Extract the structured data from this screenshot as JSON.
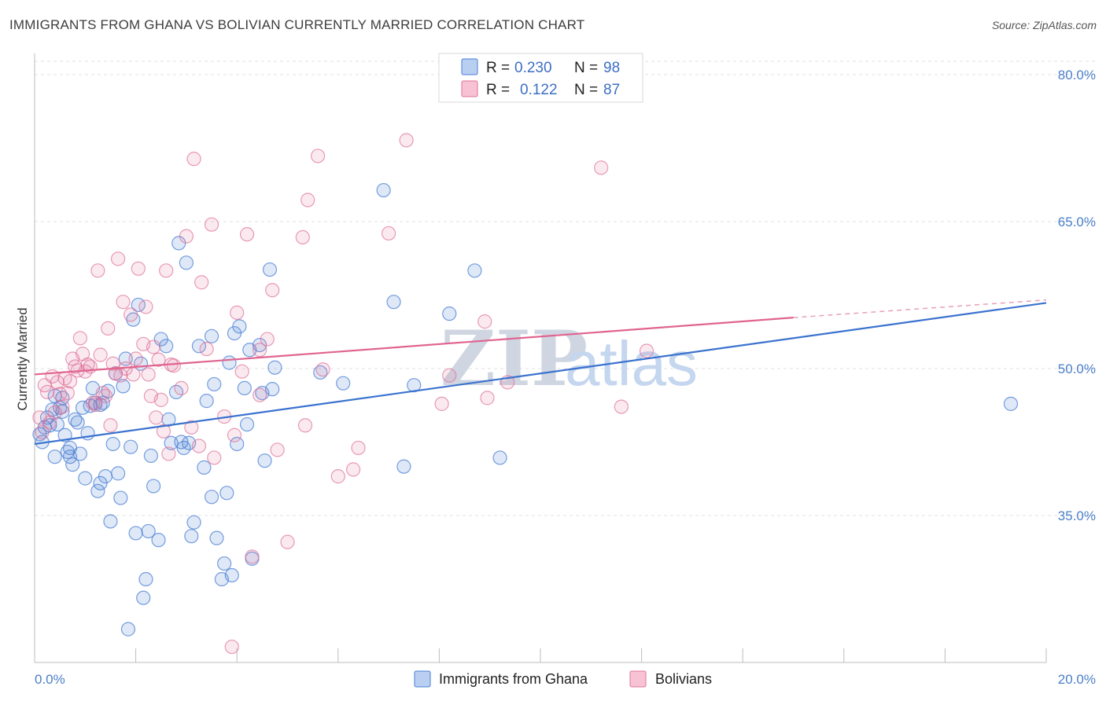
{
  "title": "IMMIGRANTS FROM GHANA VS BOLIVIAN CURRENTLY MARRIED CORRELATION CHART",
  "source": "Source: ZipAtlas.com",
  "watermark": {
    "zip": "ZIP",
    "atlas": "atlas"
  },
  "colors": {
    "ghana": "#4a7fd4",
    "bolivians": "#e07099",
    "tick_text": "#4a7fc9"
  },
  "legend": {
    "rows": [
      {
        "r_label": "R =",
        "r_value": "0.230",
        "n_label": "N =",
        "n_value": "98"
      },
      {
        "r_label": "R =",
        "r_value": "0.122",
        "n_label": "N =",
        "n_value": "87"
      }
    ]
  },
  "bottom_legend": [
    "Immigrants from Ghana",
    "Bolivians"
  ],
  "chart_data": {
    "type": "scatter",
    "title": "IMMIGRANTS FROM GHANA VS BOLIVIAN CURRENTLY MARRIED CORRELATION CHART",
    "xlabel": "",
    "ylabel": "Currently Married",
    "xlim": [
      0,
      20
    ],
    "ylim": [
      20,
      82
    ],
    "x_tick_labels": [
      "0.0%",
      "20.0%"
    ],
    "y_ticks": [
      35,
      50,
      65,
      80
    ],
    "y_tick_labels": [
      "35.0%",
      "50.0%",
      "65.0%",
      "80.0%"
    ],
    "grid": true,
    "legend_position": "top-center",
    "series": [
      {
        "name": "Immigrants from Ghana",
        "R": 0.23,
        "N": 98,
        "trend": {
          "x": [
            0,
            20
          ],
          "y": [
            42.3,
            56.7
          ]
        },
        "points": [
          [
            0.1,
            43.3
          ],
          [
            0.15,
            42.5
          ],
          [
            0.2,
            44.0
          ],
          [
            0.25,
            45.0
          ],
          [
            0.3,
            44.2
          ],
          [
            0.35,
            45.8
          ],
          [
            0.4,
            41.0
          ],
          [
            0.4,
            47.2
          ],
          [
            0.45,
            44.3
          ],
          [
            0.5,
            46.0
          ],
          [
            0.55,
            47.0
          ],
          [
            0.6,
            43.2
          ],
          [
            0.65,
            41.5
          ],
          [
            0.7,
            41.0
          ],
          [
            0.75,
            40.2
          ],
          [
            0.8,
            44.8
          ],
          [
            0.85,
            44.5
          ],
          [
            0.9,
            41.3
          ],
          [
            0.95,
            46.0
          ],
          [
            1.0,
            38.8
          ],
          [
            1.05,
            43.4
          ],
          [
            1.1,
            46.2
          ],
          [
            1.15,
            48.0
          ],
          [
            1.2,
            46.5
          ],
          [
            1.25,
            37.5
          ],
          [
            1.3,
            38.3
          ],
          [
            1.35,
            46.5
          ],
          [
            1.4,
            39.0
          ],
          [
            1.45,
            47.7
          ],
          [
            1.5,
            34.4
          ],
          [
            1.55,
            42.3
          ],
          [
            1.6,
            49.5
          ],
          [
            1.65,
            39.3
          ],
          [
            1.7,
            36.8
          ],
          [
            1.75,
            48.2
          ],
          [
            1.8,
            51.0
          ],
          [
            1.85,
            23.4
          ],
          [
            1.9,
            42.0
          ],
          [
            1.95,
            55.0
          ],
          [
            2.0,
            33.2
          ],
          [
            2.05,
            56.5
          ],
          [
            2.1,
            50.5
          ],
          [
            2.15,
            26.6
          ],
          [
            2.2,
            28.5
          ],
          [
            2.25,
            33.4
          ],
          [
            2.3,
            41.1
          ],
          [
            2.35,
            38.0
          ],
          [
            2.45,
            32.5
          ],
          [
            2.5,
            53.0
          ],
          [
            2.6,
            52.3
          ],
          [
            2.65,
            44.8
          ],
          [
            2.7,
            42.4
          ],
          [
            2.8,
            47.6
          ],
          [
            2.85,
            62.8
          ],
          [
            2.9,
            42.5
          ],
          [
            3.0,
            60.8
          ],
          [
            3.05,
            42.4
          ],
          [
            3.1,
            32.9
          ],
          [
            3.15,
            34.3
          ],
          [
            3.25,
            52.3
          ],
          [
            3.35,
            39.9
          ],
          [
            3.4,
            46.7
          ],
          [
            3.5,
            36.9
          ],
          [
            3.5,
            53.3
          ],
          [
            3.55,
            48.4
          ],
          [
            3.6,
            32.7
          ],
          [
            3.7,
            28.5
          ],
          [
            3.75,
            30.1
          ],
          [
            3.8,
            37.3
          ],
          [
            3.85,
            50.6
          ],
          [
            3.9,
            28.9
          ],
          [
            3.95,
            53.6
          ],
          [
            4.0,
            42.3
          ],
          [
            4.05,
            54.3
          ],
          [
            4.15,
            48.0
          ],
          [
            4.2,
            44.3
          ],
          [
            4.25,
            51.9
          ],
          [
            4.3,
            30.6
          ],
          [
            4.45,
            52.4
          ],
          [
            4.5,
            47.5
          ],
          [
            4.55,
            40.6
          ],
          [
            4.65,
            60.1
          ],
          [
            4.7,
            47.9
          ],
          [
            4.75,
            50.1
          ],
          [
            5.65,
            49.6
          ],
          [
            6.1,
            48.5
          ],
          [
            6.9,
            68.2
          ],
          [
            7.1,
            56.8
          ],
          [
            7.3,
            40.0
          ],
          [
            7.5,
            48.3
          ],
          [
            8.2,
            55.6
          ],
          [
            8.7,
            60.0
          ],
          [
            9.2,
            40.9
          ],
          [
            19.3,
            46.4
          ],
          [
            1.3,
            46.3
          ],
          [
            2.95,
            41.9
          ],
          [
            0.55,
            45.6
          ],
          [
            0.7,
            41.9
          ]
        ]
      },
      {
        "name": "Bolivians",
        "R": 0.122,
        "N": 87,
        "trend": {
          "x": [
            0,
            15
          ],
          "y": [
            49.4,
            55.2
          ]
        },
        "trend_dashed": {
          "x": [
            15,
            20
          ],
          "y": [
            55.2,
            57.0
          ]
        },
        "points": [
          [
            0.1,
            45.0
          ],
          [
            0.15,
            43.5
          ],
          [
            0.2,
            48.3
          ],
          [
            0.25,
            47.6
          ],
          [
            0.3,
            44.5
          ],
          [
            0.35,
            49.2
          ],
          [
            0.4,
            45.5
          ],
          [
            0.45,
            48.6
          ],
          [
            0.5,
            47.4
          ],
          [
            0.55,
            46.1
          ],
          [
            0.6,
            49.0
          ],
          [
            0.65,
            47.5
          ],
          [
            0.7,
            48.7
          ],
          [
            0.75,
            51.0
          ],
          [
            0.8,
            50.2
          ],
          [
            0.85,
            49.8
          ],
          [
            0.9,
            53.1
          ],
          [
            0.95,
            51.5
          ],
          [
            1.0,
            49.7
          ],
          [
            1.05,
            50.4
          ],
          [
            1.1,
            50.2
          ],
          [
            1.15,
            46.5
          ],
          [
            1.2,
            46.3
          ],
          [
            1.25,
            60.0
          ],
          [
            1.3,
            51.4
          ],
          [
            1.35,
            47.5
          ],
          [
            1.4,
            47.2
          ],
          [
            1.45,
            54.1
          ],
          [
            1.5,
            44.2
          ],
          [
            1.55,
            50.5
          ],
          [
            1.6,
            49.5
          ],
          [
            1.65,
            61.2
          ],
          [
            1.7,
            49.3
          ],
          [
            1.75,
            56.8
          ],
          [
            1.8,
            50.0
          ],
          [
            1.9,
            55.5
          ],
          [
            1.95,
            49.4
          ],
          [
            2.0,
            51.0
          ],
          [
            2.05,
            60.2
          ],
          [
            2.15,
            52.5
          ],
          [
            2.2,
            56.3
          ],
          [
            2.25,
            49.4
          ],
          [
            2.3,
            47.2
          ],
          [
            2.35,
            52.2
          ],
          [
            2.4,
            45.0
          ],
          [
            2.45,
            50.9
          ],
          [
            2.5,
            46.8
          ],
          [
            2.55,
            43.6
          ],
          [
            2.6,
            60.0
          ],
          [
            2.65,
            41.3
          ],
          [
            2.7,
            50.4
          ],
          [
            2.75,
            50.3
          ],
          [
            2.9,
            48.0
          ],
          [
            3.0,
            63.5
          ],
          [
            3.1,
            44.0
          ],
          [
            3.15,
            71.4
          ],
          [
            3.25,
            42.1
          ],
          [
            3.3,
            58.8
          ],
          [
            3.4,
            52.0
          ],
          [
            3.5,
            64.7
          ],
          [
            3.55,
            40.9
          ],
          [
            3.75,
            45.1
          ],
          [
            3.9,
            21.6
          ],
          [
            3.95,
            43.2
          ],
          [
            4.0,
            55.7
          ],
          [
            4.1,
            49.7
          ],
          [
            4.2,
            63.7
          ],
          [
            4.3,
            30.8
          ],
          [
            4.45,
            51.9
          ],
          [
            4.45,
            47.3
          ],
          [
            4.6,
            53.0
          ],
          [
            4.7,
            58.0
          ],
          [
            4.8,
            41.7
          ],
          [
            5.0,
            32.3
          ],
          [
            5.3,
            63.4
          ],
          [
            5.35,
            44.2
          ],
          [
            5.4,
            67.2
          ],
          [
            5.6,
            71.7
          ],
          [
            5.7,
            49.9
          ],
          [
            6.0,
            39.0
          ],
          [
            6.3,
            39.7
          ],
          [
            6.4,
            41.9
          ],
          [
            7.0,
            63.8
          ],
          [
            7.35,
            73.3
          ],
          [
            8.05,
            46.4
          ],
          [
            8.2,
            49.3
          ],
          [
            8.9,
            54.8
          ]
        ]
      }
    ],
    "extra_points_bolivians": [
      [
        8.95,
        47.0
      ],
      [
        9.35,
        48.6
      ],
      [
        11.2,
        70.5
      ],
      [
        11.6,
        46.1
      ],
      [
        12.1,
        51.8
      ]
    ]
  }
}
